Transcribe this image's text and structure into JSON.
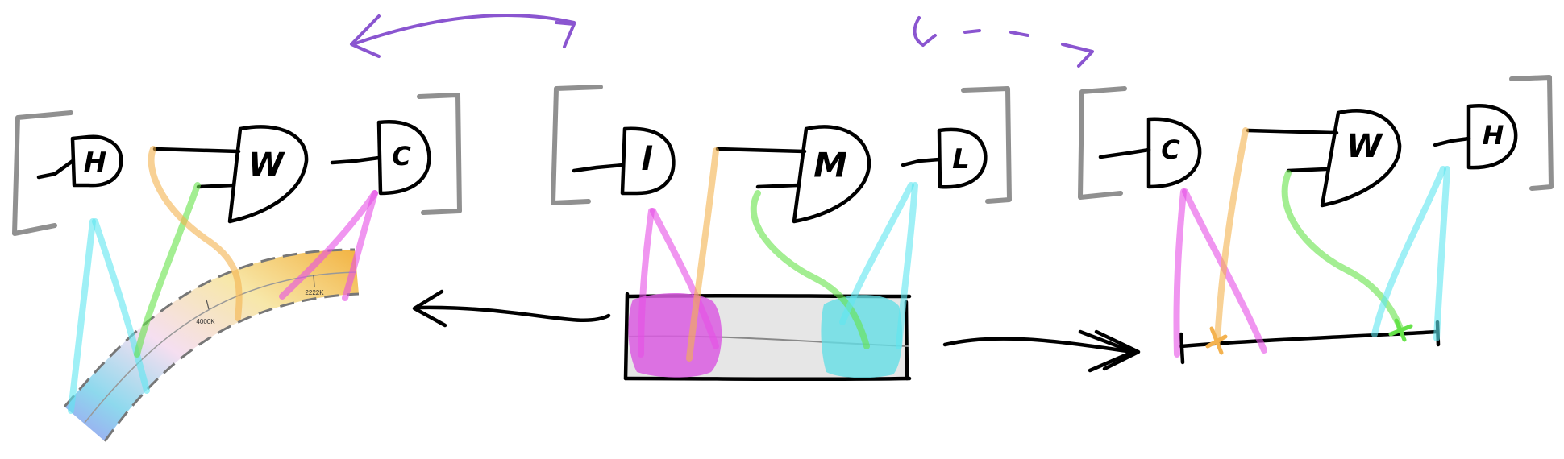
{
  "colors": {
    "cyan": "#5fe6f0",
    "green": "#66e24a",
    "orange": "#f4b24f",
    "magenta": "#e64ee6",
    "purple": "#8a55d0",
    "bracket": "#909090"
  },
  "groups": [
    {
      "gates": [
        "H",
        "W",
        "C"
      ]
    },
    {
      "gates": [
        "l",
        "M",
        "L"
      ]
    },
    {
      "gates": [
        "C",
        "W",
        "H"
      ]
    }
  ],
  "gradient_ramp": {
    "tick_labels": [
      "4000K",
      "2222K"
    ]
  },
  "icons": {
    "top_left_arrow": "curved-arrow-left-icon",
    "top_right_arrow": "dashed-arrow-icon",
    "middle_left_arrow": "arrow-left-icon",
    "middle_right_arrow": "double-arrow-right-icon"
  }
}
